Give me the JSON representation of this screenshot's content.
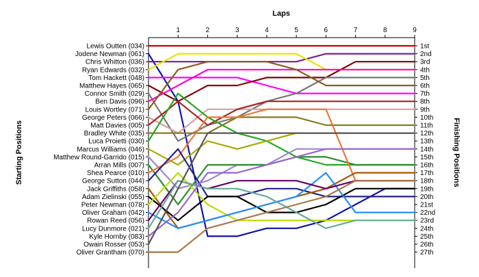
{
  "chart_data": {
    "type": "line",
    "title": "",
    "xlabel": "Laps",
    "ylabel_left": "Starting Positions",
    "ylabel_right": "Finishing Positions",
    "laps": [
      1,
      2,
      3,
      4,
      5,
      6,
      7,
      8,
      9
    ],
    "xlim": [
      0,
      9
    ],
    "positions": [
      "1st",
      "2nd",
      "3rd",
      "4th",
      "5th",
      "6th",
      "7th",
      "8th",
      "9th",
      "10th",
      "11th",
      "12th",
      "13th",
      "14th",
      "15th",
      "16th",
      "17th",
      "18th",
      "19th",
      "20th",
      "21st",
      "22nd",
      "23rd",
      "24th",
      "25th",
      "26th",
      "27th"
    ],
    "drivers": [
      "Lewis Outten (034)",
      "Jodene Newman (061)",
      "Chris Whitton (036)",
      "Ryan Edwards (032)",
      "Tom Hackett (048)",
      "Matthew Hayes (065)",
      "Connor Smith (029)",
      "Ben Davis (096)",
      "Louis Wortley (071)",
      "George Peters (066)",
      "Matt Davies (005)",
      "Bradley White (035)",
      "Luca Proietti (030)",
      "Marcus Williams (046)",
      "Matthew Round-Garrido (015)",
      "Arran Mills (007)",
      "Shea Pearce (010)",
      "George Sutton (044)",
      "Jack Griffiths (058)",
      "Adam Zielinski (055)",
      "Peter Newman (078)",
      "Oliver Graham (042)",
      "Rowan Reed (056)",
      "Lucy Dunmore (021)",
      "Kyle Hornby (083)",
      "Owain Rosser (053)",
      "Oliver Grantham (070)"
    ],
    "series": [
      {
        "color": "#cc0000",
        "positions": [
          1,
          1,
          1,
          1,
          1,
          1,
          1,
          1,
          1,
          1
        ]
      },
      {
        "color": "#1111aa",
        "positions": [
          2,
          8,
          25,
          25,
          24,
          24,
          23,
          21,
          19,
          19
        ]
      },
      {
        "color": "#7a1f8f",
        "positions": [
          3,
          3,
          3,
          3,
          3,
          3,
          2,
          2,
          2,
          2
        ]
      },
      {
        "color": "#e6e600",
        "positions": [
          4,
          2,
          2,
          2,
          2,
          2,
          4,
          4,
          4,
          4
        ]
      },
      {
        "color": "#ff00ff",
        "positions": [
          5,
          5,
          5,
          5,
          6,
          7,
          7,
          7,
          7,
          7
        ]
      },
      {
        "color": "#880000",
        "positions": [
          6,
          8,
          6,
          6,
          5,
          5,
          5,
          3,
          3,
          3
        ]
      },
      {
        "color": "#777777",
        "positions": [
          7,
          13,
          11,
          10,
          8,
          7,
          5,
          5,
          5,
          5
        ]
      },
      {
        "color": "#ff00cc",
        "positions": [
          8,
          6,
          4,
          4,
          4,
          4,
          4,
          4,
          4,
          4
        ]
      },
      {
        "color": "#8c5a1e",
        "positions": [
          9,
          4,
          3,
          3,
          3,
          4,
          6,
          6,
          6,
          6
        ]
      },
      {
        "color": "#dda0a0",
        "positions": [
          10,
          12,
          9,
          9,
          9,
          9,
          9,
          9,
          9,
          9
        ]
      },
      {
        "color": "#aa2222",
        "positions": [
          11,
          8,
          11,
          9,
          8,
          8,
          8,
          8,
          8,
          8
        ]
      },
      {
        "color": "#8a7a1e",
        "positions": [
          12,
          12,
          12,
          10,
          10,
          10,
          11,
          11,
          11,
          11
        ]
      },
      {
        "color": "#22aa22",
        "positions": [
          13,
          7,
          10,
          12,
          13,
          15,
          16,
          16,
          16,
          16
        ]
      },
      {
        "color": "#aaaa00",
        "positions": [
          14,
          16,
          13,
          14,
          13,
          12,
          12,
          12,
          12,
          12
        ]
      },
      {
        "color": "#9d86d8",
        "positions": [
          15,
          19,
          18,
          16,
          16,
          14,
          14,
          14,
          14,
          14
        ]
      },
      {
        "color": "#2e8b2e",
        "positions": [
          16,
          21,
          16,
          16,
          16,
          15,
          15,
          16,
          16,
          16
        ]
      },
      {
        "color": "#ee7733",
        "positions": [
          17,
          15,
          10,
          10,
          9,
          9,
          9,
          18,
          18,
          18
        ]
      },
      {
        "color": "#222288",
        "positions": [
          18,
          14,
          20,
          20,
          19,
          19,
          20,
          20,
          20,
          20
        ]
      },
      {
        "color": "#aa5500",
        "positions": [
          19,
          24,
          23,
          22,
          21,
          20,
          19,
          17,
          17,
          17
        ]
      },
      {
        "color": "#000000",
        "positions": [
          20,
          23,
          20,
          20,
          22,
          22,
          21,
          19,
          19,
          19
        ]
      },
      {
        "color": "#bbdd00",
        "positions": [
          21,
          17,
          21,
          23,
          23,
          23,
          23,
          23,
          23,
          23
        ]
      },
      {
        "color": "#1e90ff",
        "positions": [
          22,
          24,
          23,
          22,
          21,
          20,
          17,
          22,
          22,
          22
        ]
      },
      {
        "color": "#660066",
        "positions": [
          23,
          18,
          19,
          18,
          18,
          18,
          19,
          18,
          18,
          18
        ]
      },
      {
        "color": "#66aa99",
        "positions": [
          24,
          18,
          19,
          19,
          20,
          22,
          24,
          23,
          23,
          23
        ]
      },
      {
        "color": "#9966cc",
        "positions": [
          25,
          22,
          17,
          17,
          16,
          15,
          14,
          14,
          14,
          14
        ]
      },
      {
        "color": "#555555",
        "positions": [
          26,
          19,
          12,
          12,
          12,
          12,
          12,
          12,
          12,
          12
        ]
      },
      {
        "color": "#aa7744",
        "positions": [
          27,
          27,
          24,
          23,
          22,
          21,
          20,
          18,
          18,
          18
        ]
      }
    ]
  }
}
